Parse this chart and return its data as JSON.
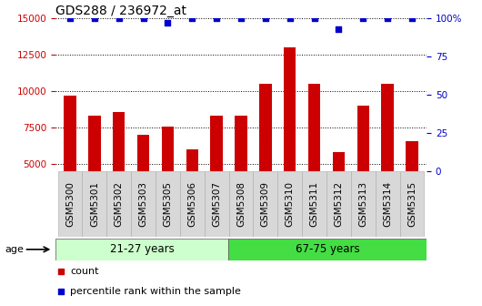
{
  "title": "GDS288 / 236972_at",
  "samples": [
    "GSM5300",
    "GSM5301",
    "GSM5302",
    "GSM5303",
    "GSM5305",
    "GSM5306",
    "GSM5307",
    "GSM5308",
    "GSM5309",
    "GSM5310",
    "GSM5311",
    "GSM5312",
    "GSM5313",
    "GSM5314",
    "GSM5315"
  ],
  "counts": [
    9700,
    8300,
    8600,
    7000,
    7600,
    6000,
    8300,
    8300,
    10500,
    13000,
    10500,
    5800,
    9000,
    10500,
    6600
  ],
  "percentiles": [
    100,
    100,
    100,
    100,
    97,
    100,
    100,
    100,
    100,
    100,
    100,
    93,
    100,
    100,
    100
  ],
  "group1_label": "21-27 years",
  "group2_label": "67-75 years",
  "group1_count": 7,
  "group2_count": 8,
  "bar_color": "#cc0000",
  "dot_color": "#0000cc",
  "group1_bg": "#ccffcc",
  "group2_bg": "#44dd44",
  "xtick_bg": "#d8d8d8",
  "ylim_left": [
    4500,
    15000
  ],
  "ylim_right": [
    0,
    100
  ],
  "yticks_left": [
    5000,
    7500,
    10000,
    12500,
    15000
  ],
  "yticks_right": [
    0,
    25,
    50,
    75,
    100
  ],
  "ylabel_left_color": "#cc0000",
  "ylabel_right_color": "#0000cc",
  "age_label": "age",
  "legend_count_label": "count",
  "legend_pct_label": "percentile rank within the sample",
  "title_fontsize": 10,
  "tick_fontsize": 7.5,
  "bar_width": 0.5
}
